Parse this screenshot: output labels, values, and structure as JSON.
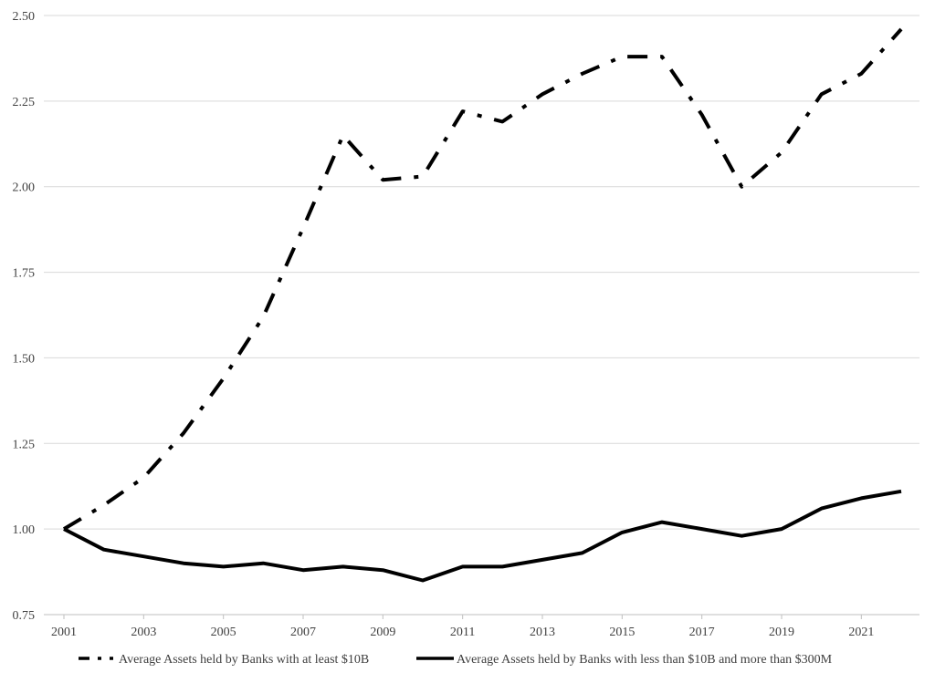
{
  "chart_data": {
    "type": "line",
    "title": "",
    "xlabel": "",
    "ylabel": "",
    "x": [
      2001,
      2002,
      2003,
      2004,
      2005,
      2006,
      2007,
      2008,
      2009,
      2010,
      2011,
      2012,
      2013,
      2014,
      2015,
      2016,
      2017,
      2018,
      2019,
      2020,
      2021,
      2022
    ],
    "x_tick_labels": [
      "2001",
      "2003",
      "2005",
      "2007",
      "2009",
      "2011",
      "2013",
      "2015",
      "2017",
      "2019",
      "2021"
    ],
    "y_tick_labels": [
      "0.75",
      "1.00",
      "1.25",
      "1.50",
      "1.75",
      "2.00",
      "2.25",
      "2.50"
    ],
    "ylim": [
      0.75,
      2.5
    ],
    "xlim": [
      2001,
      2022
    ],
    "grid": "horizontal",
    "legend_position": "bottom",
    "series": [
      {
        "name": "Average Assets held by Banks with at least $10B",
        "line_style": "dash-dot",
        "color": "#000000",
        "values": [
          1.0,
          1.07,
          1.15,
          1.28,
          1.44,
          1.62,
          1.88,
          2.15,
          2.02,
          2.03,
          2.22,
          2.19,
          2.27,
          2.33,
          2.38,
          2.38,
          2.21,
          2.0,
          2.1,
          2.27,
          2.33,
          2.46
        ]
      },
      {
        "name": "Average Assets held by Banks with less than $10B and more than $300M",
        "line_style": "solid",
        "color": "#000000",
        "values": [
          1.0,
          0.94,
          0.92,
          0.9,
          0.89,
          0.9,
          0.88,
          0.89,
          0.88,
          0.85,
          0.89,
          0.89,
          0.91,
          0.93,
          0.99,
          1.02,
          1.0,
          0.98,
          1.0,
          1.06,
          1.09,
          1.11
        ]
      }
    ],
    "colors": {
      "gridline": "#d9d9d9",
      "axis": "#bfbfbf",
      "text": "#404040",
      "series": "#000000"
    }
  }
}
